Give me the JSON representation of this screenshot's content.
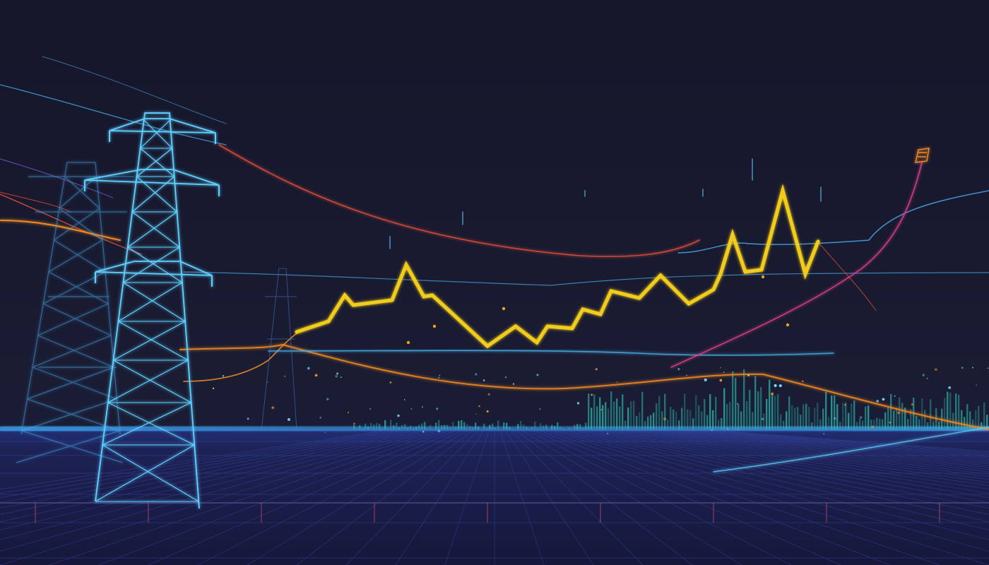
{
  "scene": {
    "description_tags": [
      "power-transmission-towers",
      "energy-price-line",
      "night-grid-horizon"
    ],
    "colors": {
      "sky_top": "#15162a",
      "sky_mid": "#1a1c33",
      "floor": "#1b1d45",
      "tower_glow": "#5fd0ff",
      "wire_blue": "#4aa8e8",
      "wire_red": "#e0503a",
      "wire_orange": "#f08a24",
      "wire_pink": "#e0408a",
      "price_line": "#f2cc1e",
      "city_glow": "#2fc4b4",
      "horizon_glow": "#3fb0ff"
    }
  }
}
